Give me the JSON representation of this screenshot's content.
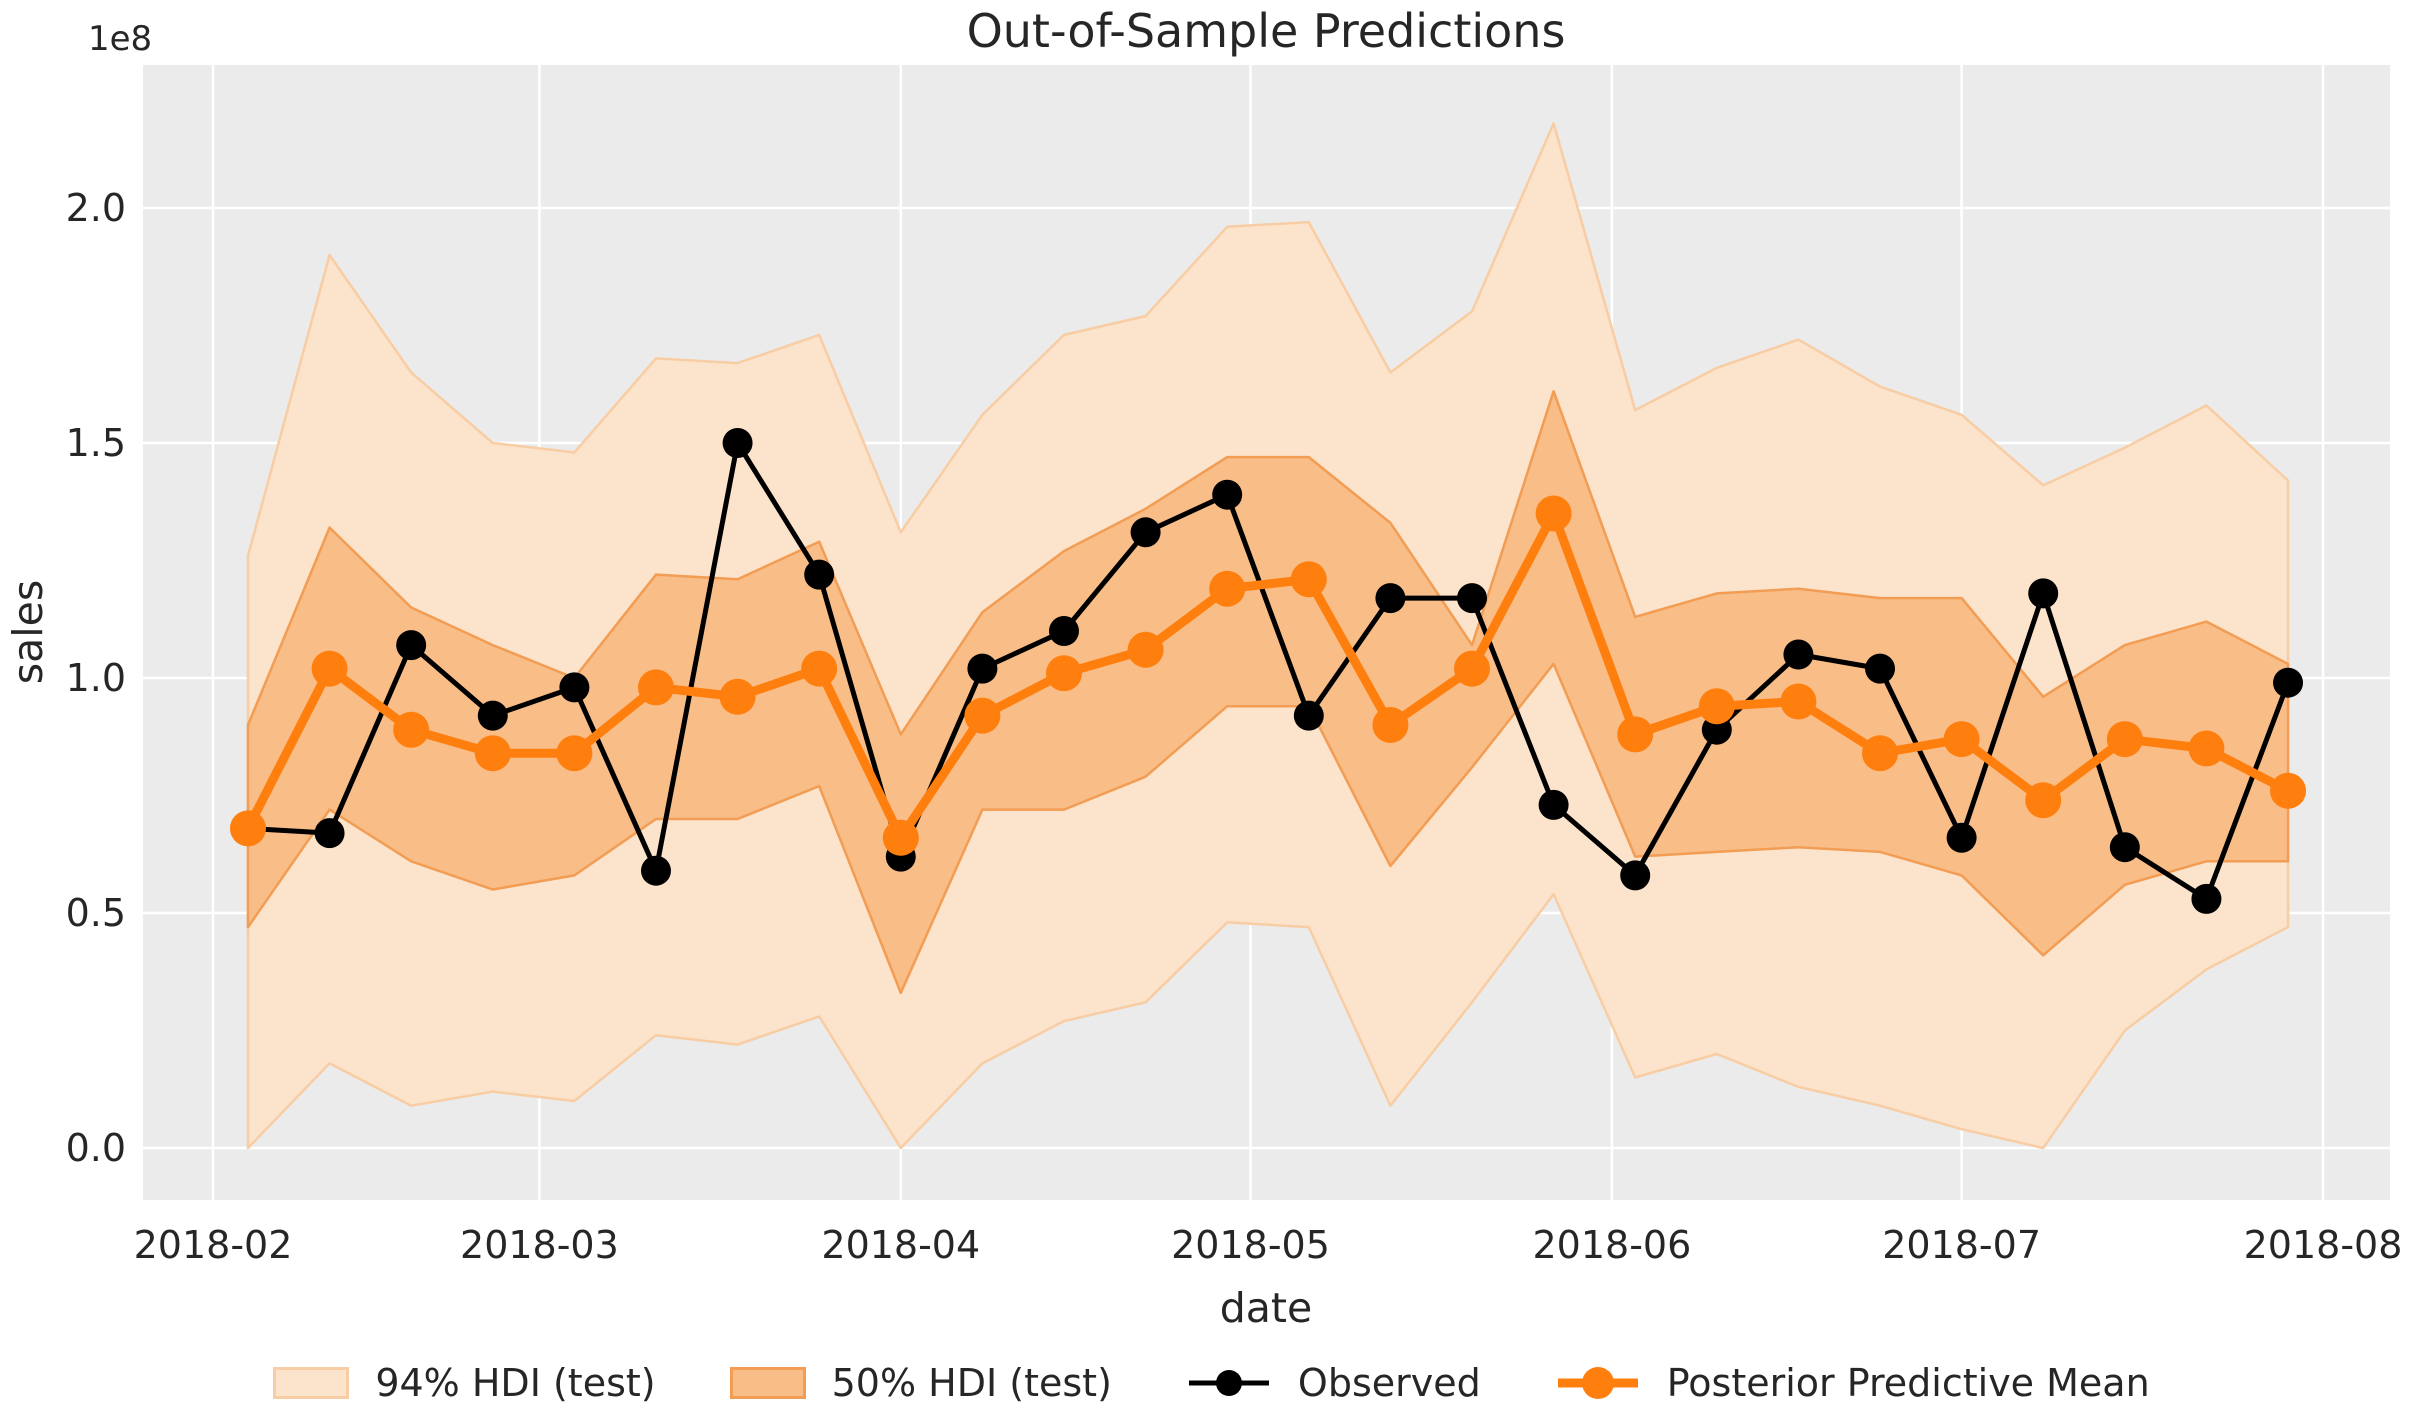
{
  "chart_data": {
    "type": "line",
    "title": "Out-of-Sample Predictions",
    "xlabel": "date",
    "ylabel": "sales",
    "y_offset_label": "1e8",
    "grid": true,
    "ylim": [
      -0.11,
      2.3
    ],
    "background": {
      "figure": "#ffffff",
      "axes": "#ebebeb",
      "gridline": "#ffffff"
    },
    "x": [
      "2018-02-04",
      "2018-02-11",
      "2018-02-18",
      "2018-02-25",
      "2018-03-04",
      "2018-03-11",
      "2018-03-18",
      "2018-03-25",
      "2018-04-01",
      "2018-04-08",
      "2018-04-15",
      "2018-04-22",
      "2018-04-29",
      "2018-05-06",
      "2018-05-13",
      "2018-05-20",
      "2018-05-27",
      "2018-06-03",
      "2018-06-10",
      "2018-06-17",
      "2018-06-24",
      "2018-07-01",
      "2018-07-08",
      "2018-07-15",
      "2018-07-22",
      "2018-07-29"
    ],
    "xticks": [
      {
        "label": "2018-02",
        "date": "2018-02-01"
      },
      {
        "label": "2018-03",
        "date": "2018-03-01"
      },
      {
        "label": "2018-04",
        "date": "2018-04-01"
      },
      {
        "label": "2018-05",
        "date": "2018-05-01"
      },
      {
        "label": "2018-06",
        "date": "2018-06-01"
      },
      {
        "label": "2018-07",
        "date": "2018-07-01"
      },
      {
        "label": "2018-08",
        "date": "2018-08-01"
      }
    ],
    "yticks": [
      {
        "label": "0.0",
        "value": 0.0
      },
      {
        "label": "0.5",
        "value": 0.5
      },
      {
        "label": "1.0",
        "value": 1.0
      },
      {
        "label": "1.5",
        "value": 1.5
      },
      {
        "label": "2.0",
        "value": 2.0
      }
    ],
    "bands": [
      {
        "name": "94% HDI (test)",
        "fill": "#fbe3cc",
        "edge": "#f8cda4",
        "hi": [
          1.26,
          1.9,
          1.65,
          1.5,
          1.48,
          1.68,
          1.67,
          1.73,
          1.31,
          1.56,
          1.73,
          1.77,
          1.96,
          1.97,
          1.65,
          1.78,
          2.18,
          1.57,
          1.66,
          1.72,
          1.62,
          1.56,
          1.41,
          1.49,
          1.58,
          1.42
        ],
        "lo": [
          0.0,
          0.18,
          0.09,
          0.12,
          0.1,
          0.24,
          0.22,
          0.28,
          0.0,
          0.18,
          0.27,
          0.31,
          0.48,
          0.47,
          0.09,
          0.31,
          0.54,
          0.15,
          0.2,
          0.13,
          0.09,
          0.04,
          0.0,
          0.25,
          0.38,
          0.47
        ]
      },
      {
        "name": "50% HDI (test)",
        "fill": "#f9bd88",
        "edge": "#f29d53",
        "hi": [
          0.9,
          1.32,
          1.15,
          1.07,
          1.0,
          1.22,
          1.21,
          1.29,
          0.88,
          1.14,
          1.27,
          1.36,
          1.47,
          1.47,
          1.33,
          1.07,
          1.61,
          1.13,
          1.18,
          1.19,
          1.17,
          1.17,
          0.96,
          1.07,
          1.12,
          1.03
        ],
        "lo": [
          0.47,
          0.72,
          0.61,
          0.55,
          0.58,
          0.7,
          0.7,
          0.77,
          0.33,
          0.72,
          0.72,
          0.79,
          0.94,
          0.94,
          0.6,
          0.81,
          1.03,
          0.62,
          0.63,
          0.64,
          0.63,
          0.58,
          0.41,
          0.56,
          0.61,
          0.61
        ]
      }
    ],
    "series": [
      {
        "name": "Observed",
        "color": "#000000",
        "line_width": 5,
        "marker_radius": 15,
        "values": [
          0.68,
          0.67,
          1.07,
          0.92,
          0.98,
          0.59,
          1.5,
          1.22,
          0.62,
          1.02,
          1.1,
          1.31,
          1.39,
          0.92,
          1.17,
          1.17,
          0.73,
          0.58,
          0.89,
          1.05,
          1.02,
          0.66,
          1.18,
          0.64,
          0.53,
          0.99
        ]
      },
      {
        "name": "Posterior Predictive Mean",
        "color": "#ff7f0e",
        "line_width": 9,
        "marker_radius": 18,
        "values": [
          0.68,
          1.02,
          0.89,
          0.84,
          0.84,
          0.98,
          0.96,
          1.02,
          0.66,
          0.92,
          1.01,
          1.06,
          1.19,
          1.21,
          0.9,
          1.02,
          1.35,
          0.88,
          0.94,
          0.95,
          0.84,
          0.87,
          0.74,
          0.87,
          0.85,
          0.76
        ]
      }
    ],
    "legend": {
      "position": "lower center",
      "entries": [
        "94% HDI (test)",
        "50% HDI (test)",
        "Observed",
        "Posterior Predictive Mean"
      ]
    }
  }
}
